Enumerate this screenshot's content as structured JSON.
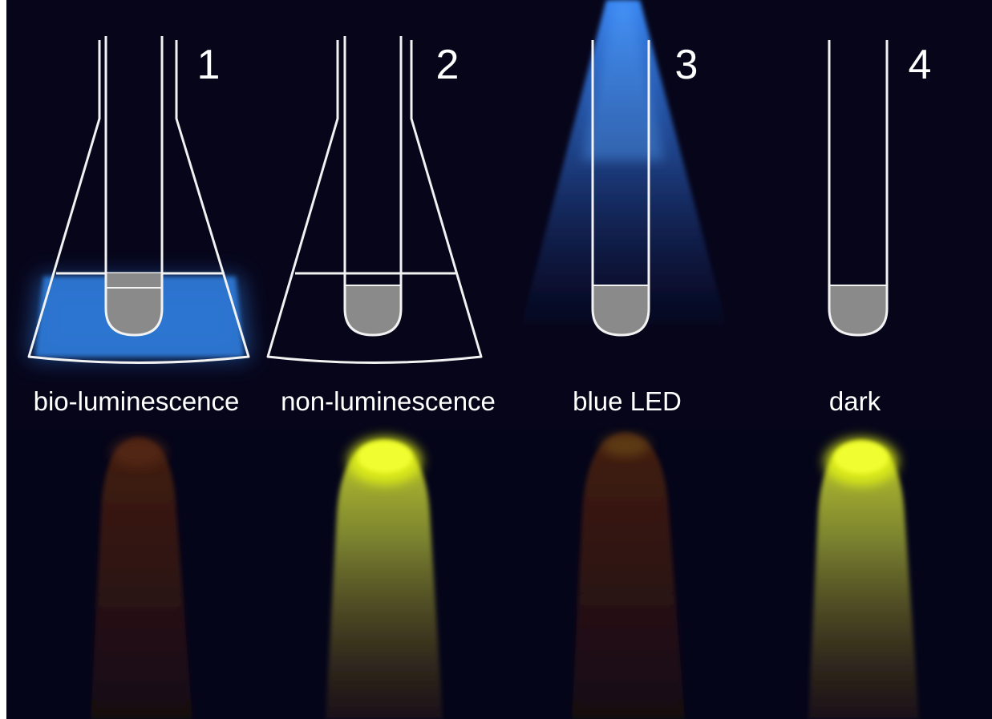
{
  "panels": [
    {
      "number": "1",
      "caption": "bio-luminescence",
      "illumination": "bio-luminescence",
      "flask": true,
      "result_glow": "dim red"
    },
    {
      "number": "2",
      "caption": "non-luminescence",
      "illumination": "none",
      "flask": true,
      "result_glow": "bright yellow-green"
    },
    {
      "number": "3",
      "caption": "blue LED",
      "illumination": "blue LED",
      "flask": false,
      "result_glow": "dim red"
    },
    {
      "number": "4",
      "caption": "dark",
      "illumination": "none",
      "flask": false,
      "result_glow": "bright yellow-green"
    }
  ],
  "colors": {
    "background": "#07051a",
    "outline": "#f2f2f2",
    "tube_fill": "#8a8a8a",
    "bio_glow": "#2f7fe0",
    "led_beam": "#3a8cff",
    "green_glow": "#e4f516",
    "red_glow": "#5a1f12"
  },
  "icons": {
    "flask": "erlenmeyer-flask-icon",
    "tube": "test-tube-icon",
    "light": "blue-led-beam-icon"
  }
}
